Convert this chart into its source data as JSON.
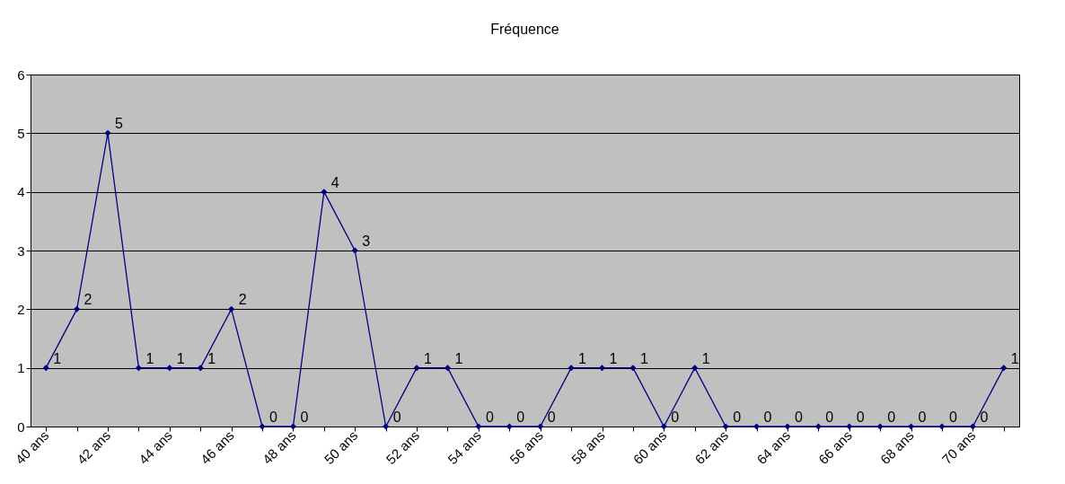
{
  "chart_data": {
    "type": "line",
    "title": "Fréquence",
    "categories": [
      "40 ans",
      null,
      "42 ans",
      null,
      "44 ans",
      null,
      "46 ans",
      null,
      "48 ans",
      null,
      "50 ans",
      null,
      "52 ans",
      null,
      "54 ans",
      null,
      "56 ans",
      null,
      "58 ans",
      null,
      "60 ans",
      null,
      "62 ans",
      null,
      "64 ans",
      null,
      "66 ans",
      null,
      "68 ans",
      null,
      "70 ans",
      null
    ],
    "series": [
      {
        "color": "#000080",
        "values": [
          1,
          2,
          5,
          1,
          1,
          1,
          2,
          0,
          0,
          4,
          3,
          0,
          1,
          1,
          0,
          0,
          0,
          1,
          1,
          1,
          0,
          1,
          0,
          0,
          0,
          0,
          0,
          0,
          0,
          0,
          0,
          1
        ]
      }
    ],
    "ylim": [
      0,
      6
    ],
    "yticks": [
      0,
      1,
      2,
      3,
      4,
      5,
      6
    ],
    "grid": "y",
    "marker": "diamond",
    "line_style": "solid",
    "data_labels": true
  }
}
